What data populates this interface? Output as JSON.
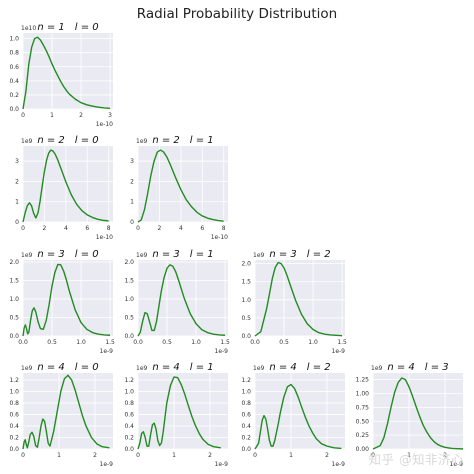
{
  "figure": {
    "title": "Radial Probability Distribution",
    "watermark": "知乎 @知非济心",
    "line_color": "#228b22",
    "panel_bg": "#eaeaf2",
    "grid_color": "#ffffff"
  },
  "chart_data": [
    {
      "type": "line",
      "n": 1,
      "l": 0,
      "title_n": "n = 1",
      "title_l": "l = 0",
      "grid": true,
      "multiplier": "1e10",
      "offset": "1e-10",
      "xlim": [
        0,
        3.1
      ],
      "ylim": [
        0,
        1.08
      ],
      "xticks": [
        0,
        1,
        2,
        3
      ],
      "xticklabels": [
        "0",
        "1",
        "2",
        "3"
      ],
      "yticks": [
        0,
        0.2,
        0.4,
        0.6,
        0.8,
        1.0
      ],
      "yticklabels": [
        "0.0",
        "0.2",
        "0.4",
        "0.6",
        "0.8",
        "1.0"
      ],
      "x": [
        0,
        0.1,
        0.2,
        0.3,
        0.4,
        0.5,
        0.6,
        0.7,
        0.8,
        0.9,
        1.0,
        1.1,
        1.2,
        1.3,
        1.4,
        1.5,
        1.6,
        1.8,
        2.0,
        2.2,
        2.4,
        2.6,
        2.8,
        3.0
      ],
      "y": [
        0,
        0.25,
        0.64,
        0.88,
        1.0,
        1.02,
        0.98,
        0.91,
        0.83,
        0.74,
        0.64,
        0.55,
        0.47,
        0.39,
        0.32,
        0.26,
        0.21,
        0.14,
        0.09,
        0.06,
        0.04,
        0.025,
        0.015,
        0.01
      ]
    },
    {
      "type": "line",
      "n": 2,
      "l": 0,
      "title_n": "n = 2",
      "title_l": "l = 0",
      "grid": true,
      "multiplier": "1e9",
      "offset": "1e-10",
      "xlim": [
        0,
        8.4
      ],
      "ylim": [
        0,
        3.75
      ],
      "xticks": [
        0,
        2,
        4,
        6,
        8
      ],
      "xticklabels": [
        "0",
        "2",
        "4",
        "6",
        "8"
      ],
      "yticks": [
        0,
        1,
        2,
        3
      ],
      "yticklabels": [
        "0",
        "1",
        "2",
        "3"
      ],
      "x": [
        0,
        0.2,
        0.4,
        0.6,
        0.8,
        1.0,
        1.2,
        1.4,
        1.6,
        1.8,
        2.0,
        2.2,
        2.4,
        2.6,
        2.8,
        3.0,
        3.2,
        3.5,
        4.0,
        4.5,
        5.0,
        5.5,
        6.0,
        6.5,
        7.0,
        7.5,
        8.0
      ],
      "y": [
        0,
        0.45,
        0.8,
        0.95,
        0.8,
        0.42,
        0.2,
        0.45,
        1.05,
        1.8,
        2.5,
        3.05,
        3.4,
        3.55,
        3.5,
        3.35,
        3.12,
        2.7,
        1.98,
        1.35,
        0.88,
        0.56,
        0.35,
        0.22,
        0.13,
        0.08,
        0.05
      ]
    },
    {
      "type": "line",
      "n": 2,
      "l": 1,
      "title_n": "n = 2",
      "title_l": "l = 1",
      "grid": true,
      "multiplier": "1e9",
      "offset": "1e-10",
      "xlim": [
        0,
        8.4
      ],
      "ylim": [
        0,
        3.75
      ],
      "xticks": [
        0,
        2,
        4,
        6,
        8
      ],
      "xticklabels": [
        "0",
        "2",
        "4",
        "6",
        "8"
      ],
      "yticks": [
        0,
        1,
        2,
        3
      ],
      "yticklabels": [
        "0",
        "1",
        "2",
        "3"
      ],
      "x": [
        0,
        0.3,
        0.6,
        0.9,
        1.2,
        1.5,
        1.8,
        2.1,
        2.4,
        2.7,
        3.0,
        3.5,
        4.0,
        4.5,
        5.0,
        5.5,
        6.0,
        6.5,
        7.0,
        7.5,
        8.0
      ],
      "y": [
        0,
        0.1,
        0.6,
        1.4,
        2.3,
        3.0,
        3.45,
        3.55,
        3.45,
        3.2,
        2.85,
        2.2,
        1.6,
        1.1,
        0.75,
        0.48,
        0.3,
        0.19,
        0.12,
        0.07,
        0.04
      ]
    },
    {
      "type": "line",
      "n": 3,
      "l": 0,
      "title_n": "n = 3",
      "title_l": "l = 0",
      "grid": true,
      "multiplier": "1e9",
      "offset": "1e-9",
      "xlim": [
        0,
        1.55
      ],
      "ylim": [
        0,
        2.05
      ],
      "xticks": [
        0,
        0.5,
        1.0,
        1.5
      ],
      "xticklabels": [
        "0.0",
        "0.5",
        "1.0",
        "1.5"
      ],
      "yticks": [
        0,
        0.5,
        1.0,
        1.5,
        2.0
      ],
      "yticklabels": [
        "0.0",
        "0.5",
        "1.0",
        "1.5",
        "2.0"
      ],
      "x": [
        0,
        0.02,
        0.04,
        0.06,
        0.08,
        0.1,
        0.13,
        0.16,
        0.19,
        0.22,
        0.26,
        0.3,
        0.35,
        0.4,
        0.45,
        0.5,
        0.55,
        0.6,
        0.65,
        0.7,
        0.75,
        0.8,
        0.9,
        1.0,
        1.1,
        1.2,
        1.3,
        1.4,
        1.5
      ],
      "y": [
        0,
        0.22,
        0.3,
        0.2,
        0.06,
        0.1,
        0.42,
        0.68,
        0.76,
        0.65,
        0.38,
        0.2,
        0.18,
        0.42,
        0.85,
        1.35,
        1.72,
        1.93,
        1.92,
        1.75,
        1.5,
        1.2,
        0.7,
        0.36,
        0.18,
        0.09,
        0.05,
        0.03,
        0.02
      ]
    },
    {
      "type": "line",
      "n": 3,
      "l": 1,
      "title_n": "n = 3",
      "title_l": "l = 1",
      "grid": true,
      "multiplier": "1e9",
      "offset": "1e-9",
      "xlim": [
        0,
        1.55
      ],
      "ylim": [
        0,
        2.05
      ],
      "xticks": [
        0,
        0.5,
        1.0,
        1.5
      ],
      "xticklabels": [
        "0.0",
        "0.5",
        "1.0",
        "1.5"
      ],
      "yticks": [
        0,
        0.5,
        1.0,
        1.5,
        2.0
      ],
      "yticklabels": [
        "0.0",
        "0.5",
        "1.0",
        "1.5",
        "2.0"
      ],
      "x": [
        0,
        0.04,
        0.08,
        0.12,
        0.16,
        0.2,
        0.24,
        0.28,
        0.32,
        0.36,
        0.4,
        0.45,
        0.5,
        0.55,
        0.6,
        0.65,
        0.7,
        0.75,
        0.8,
        0.9,
        1.0,
        1.1,
        1.2,
        1.3,
        1.4,
        1.5
      ],
      "y": [
        0,
        0.1,
        0.4,
        0.63,
        0.6,
        0.38,
        0.15,
        0.15,
        0.4,
        0.8,
        1.2,
        1.58,
        1.83,
        1.92,
        1.88,
        1.73,
        1.5,
        1.25,
        1.0,
        0.6,
        0.33,
        0.17,
        0.09,
        0.05,
        0.03,
        0.02
      ]
    },
    {
      "type": "line",
      "n": 3,
      "l": 2,
      "title_n": "n = 3",
      "title_l": "l = 2",
      "grid": true,
      "multiplier": "1e9",
      "offset": "1e-9",
      "xlim": [
        0,
        1.55
      ],
      "ylim": [
        0,
        2.1
      ],
      "xticks": [
        0,
        0.5,
        1.0,
        1.5
      ],
      "xticklabels": [
        "0.0",
        "0.5",
        "1.0",
        "1.5"
      ],
      "yticks": [
        0,
        0.5,
        1.0,
        1.5,
        2.0
      ],
      "yticklabels": [
        "0.0",
        "0.5",
        "1.0",
        "1.5",
        "2.0"
      ],
      "x": [
        0,
        0.1,
        0.2,
        0.3,
        0.35,
        0.4,
        0.45,
        0.5,
        0.55,
        0.6,
        0.7,
        0.8,
        0.9,
        1.0,
        1.1,
        1.2,
        1.3,
        1.4,
        1.5
      ],
      "y": [
        0,
        0.12,
        0.75,
        1.6,
        1.9,
        2.03,
        2.0,
        1.88,
        1.68,
        1.44,
        0.98,
        0.6,
        0.34,
        0.18,
        0.09,
        0.05,
        0.03,
        0.02,
        0.01
      ]
    },
    {
      "type": "line",
      "n": 4,
      "l": 0,
      "title_n": "n = 4",
      "title_l": "l = 0",
      "grid": true,
      "multiplier": "1e9",
      "offset": "1e-9",
      "xlim": [
        0,
        2.5
      ],
      "ylim": [
        0,
        1.32
      ],
      "xticks": [
        0,
        1,
        2
      ],
      "xticklabels": [
        "0",
        "1",
        "2"
      ],
      "yticks": [
        0,
        0.2,
        0.4,
        0.6,
        0.8,
        1.0,
        1.2
      ],
      "yticklabels": [
        "0.0",
        "0.2",
        "0.4",
        "0.6",
        "0.8",
        "1.0",
        "1.2"
      ],
      "x": [
        0,
        0.03,
        0.06,
        0.09,
        0.12,
        0.16,
        0.2,
        0.25,
        0.3,
        0.35,
        0.4,
        0.45,
        0.5,
        0.55,
        0.6,
        0.65,
        0.7,
        0.75,
        0.85,
        0.95,
        1.05,
        1.15,
        1.25,
        1.35,
        1.45,
        1.55,
        1.65,
        1.75,
        1.9,
        2.05,
        2.2,
        2.4
      ],
      "y": [
        0,
        0.12,
        0.16,
        0.08,
        0.02,
        0.12,
        0.25,
        0.29,
        0.22,
        0.06,
        0.03,
        0.2,
        0.4,
        0.52,
        0.48,
        0.3,
        0.1,
        0.05,
        0.3,
        0.65,
        1.0,
        1.22,
        1.28,
        1.2,
        1.02,
        0.8,
        0.58,
        0.4,
        0.2,
        0.09,
        0.04,
        0.02
      ]
    },
    {
      "type": "line",
      "n": 4,
      "l": 1,
      "title_n": "n = 4",
      "title_l": "l = 1",
      "grid": true,
      "multiplier": "1e9",
      "offset": "1e-9",
      "xlim": [
        0,
        2.5
      ],
      "ylim": [
        0,
        1.32
      ],
      "xticks": [
        0,
        1,
        2
      ],
      "xticklabels": [
        "0",
        "1",
        "2"
      ],
      "yticks": [
        0,
        0.2,
        0.4,
        0.6,
        0.8,
        1.0,
        1.2
      ],
      "yticklabels": [
        "0.0",
        "0.2",
        "0.4",
        "0.6",
        "0.8",
        "1.0",
        "1.2"
      ],
      "x": [
        0,
        0.05,
        0.1,
        0.15,
        0.2,
        0.25,
        0.3,
        0.35,
        0.4,
        0.45,
        0.5,
        0.55,
        0.6,
        0.65,
        0.7,
        0.75,
        0.8,
        0.9,
        1.0,
        1.1,
        1.2,
        1.3,
        1.4,
        1.5,
        1.6,
        1.7,
        1.8,
        1.95,
        2.1,
        2.3
      ],
      "y": [
        0,
        0.1,
        0.27,
        0.3,
        0.2,
        0.05,
        0.05,
        0.25,
        0.42,
        0.45,
        0.35,
        0.15,
        0.06,
        0.1,
        0.3,
        0.55,
        0.8,
        1.1,
        1.25,
        1.24,
        1.12,
        0.95,
        0.75,
        0.56,
        0.4,
        0.27,
        0.17,
        0.08,
        0.04,
        0.02
      ]
    },
    {
      "type": "line",
      "n": 4,
      "l": 2,
      "title_n": "n = 4",
      "title_l": "l = 2",
      "grid": true,
      "multiplier": "1e9",
      "offset": "1e-9",
      "xlim": [
        0,
        2.5
      ],
      "ylim": [
        0,
        1.32
      ],
      "xticks": [
        0,
        1,
        2
      ],
      "xticklabels": [
        "0",
        "1",
        "2"
      ],
      "yticks": [
        0,
        0.2,
        0.4,
        0.6,
        0.8,
        1.0,
        1.2
      ],
      "yticklabels": [
        "0.0",
        "0.2",
        "0.4",
        "0.6",
        "0.8",
        "1.0",
        "1.2"
      ],
      "x": [
        0,
        0.1,
        0.15,
        0.2,
        0.25,
        0.3,
        0.35,
        0.4,
        0.45,
        0.5,
        0.55,
        0.6,
        0.65,
        0.7,
        0.8,
        0.9,
        1.0,
        1.1,
        1.2,
        1.3,
        1.4,
        1.5,
        1.6,
        1.7,
        1.85,
        2.0,
        2.2,
        2.4
      ],
      "y": [
        0,
        0.1,
        0.3,
        0.5,
        0.58,
        0.52,
        0.35,
        0.15,
        0.05,
        0.05,
        0.15,
        0.3,
        0.45,
        0.62,
        0.9,
        1.08,
        1.12,
        1.05,
        0.9,
        0.72,
        0.55,
        0.4,
        0.28,
        0.18,
        0.09,
        0.05,
        0.02,
        0.01
      ]
    },
    {
      "type": "line",
      "n": 4,
      "l": 3,
      "title_n": "n = 4",
      "title_l": "l = 3",
      "grid": true,
      "multiplier": "1e9",
      "offset": "1e-9",
      "xlim": [
        0,
        2.5
      ],
      "ylim": [
        0,
        1.37
      ],
      "xticks": [
        0,
        1,
        2
      ],
      "xticklabels": [
        "0",
        "1",
        "2"
      ],
      "yticks": [
        0,
        0.25,
        0.5,
        0.75,
        1.0,
        1.25
      ],
      "yticklabels": [
        "0.00",
        "0.25",
        "0.50",
        "0.75",
        "1.00",
        "1.25"
      ],
      "x": [
        0,
        0.2,
        0.3,
        0.4,
        0.5,
        0.6,
        0.7,
        0.8,
        0.9,
        1.0,
        1.1,
        1.2,
        1.3,
        1.4,
        1.5,
        1.6,
        1.7,
        1.8,
        1.9,
        2.0,
        2.1,
        2.2,
        2.35,
        2.5
      ],
      "y": [
        0,
        0.06,
        0.2,
        0.45,
        0.75,
        1.02,
        1.2,
        1.28,
        1.25,
        1.12,
        0.95,
        0.76,
        0.58,
        0.42,
        0.3,
        0.2,
        0.13,
        0.08,
        0.05,
        0.03,
        0.02,
        0.01,
        0.005,
        0
      ]
    }
  ]
}
